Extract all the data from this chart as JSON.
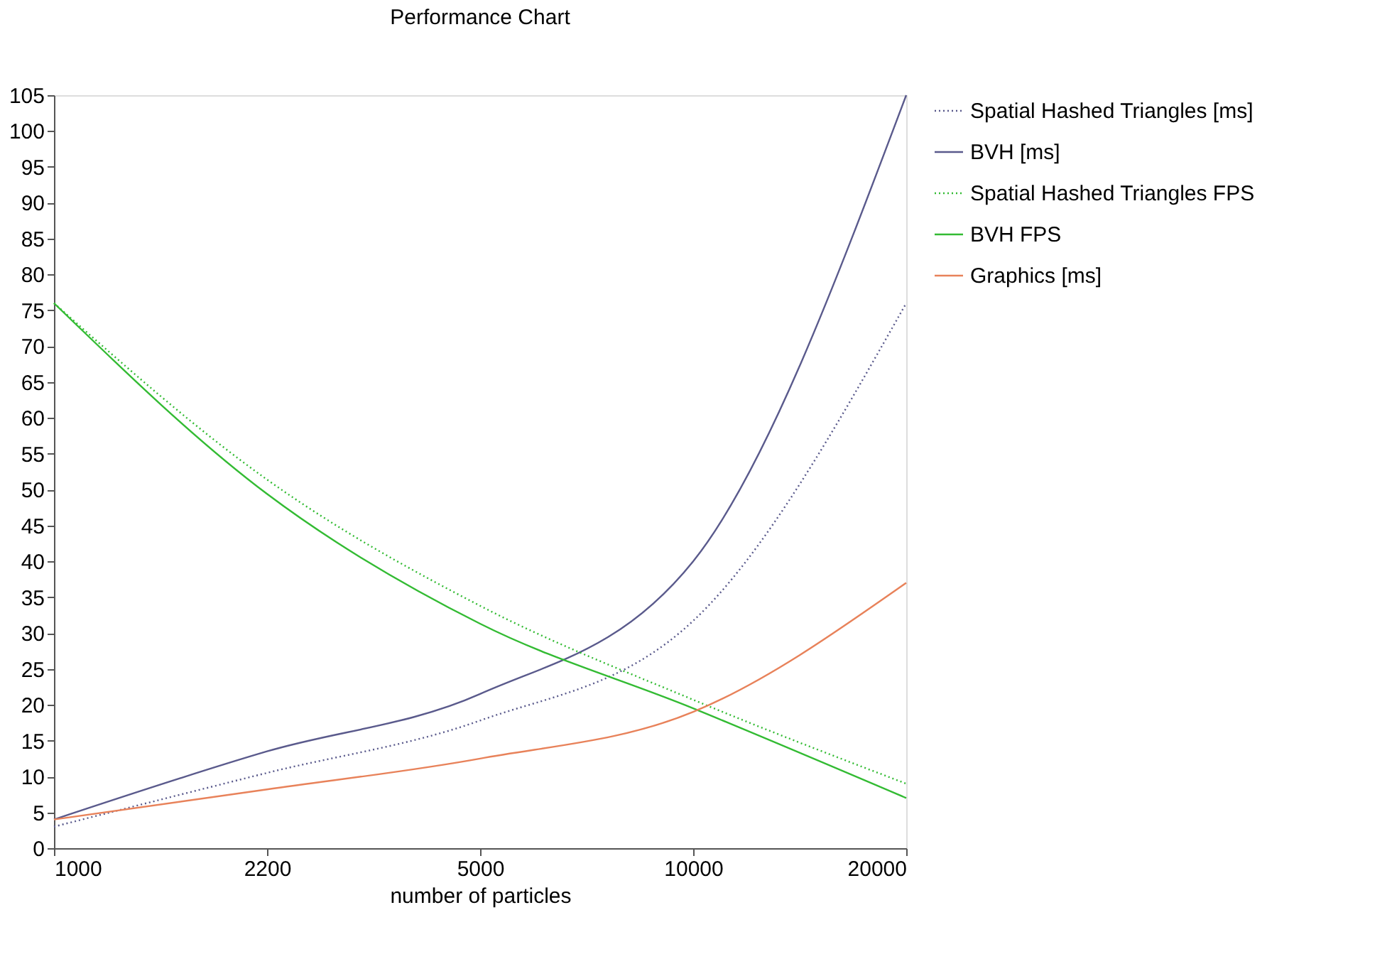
{
  "chart_data": {
    "type": "line",
    "title": "Performance Chart",
    "xlabel": "number of particles",
    "categories": [
      "1000",
      "2200",
      "5000",
      "10000",
      "20000"
    ],
    "series": [
      {
        "name": "Spatial Hashed Triangles [ms]",
        "color": "#5a5a8c",
        "line_style": "dotted",
        "values": [
          3,
          10.5,
          17.8,
          31.7,
          76
        ]
      },
      {
        "name": "BVH [ms]",
        "color": "#5a5a8c",
        "line_style": "solid",
        "values": [
          4,
          13.5,
          21.5,
          40,
          105
        ]
      },
      {
        "name": "Spatial Hashed Triangles FPS",
        "color": "#33bb33",
        "line_style": "dotted",
        "values": [
          76,
          51.4,
          33.8,
          20.7,
          9
        ]
      },
      {
        "name": "BVH FPS",
        "color": "#33bb33",
        "line_style": "solid",
        "values": [
          76,
          49.4,
          31.3,
          19.5,
          7
        ]
      },
      {
        "name": "Graphics [ms]",
        "color": "#e8825a",
        "line_style": "solid",
        "values": [
          4,
          8.2,
          12.5,
          19,
          37
        ]
      }
    ],
    "ylim": [
      0,
      105
    ],
    "yticks": [
      0,
      5,
      10,
      15,
      20,
      25,
      30,
      35,
      40,
      45,
      50,
      55,
      60,
      65,
      70,
      75,
      80,
      85,
      90,
      95,
      100,
      105
    ],
    "grid": false,
    "legend": "right",
    "marker": "none"
  }
}
